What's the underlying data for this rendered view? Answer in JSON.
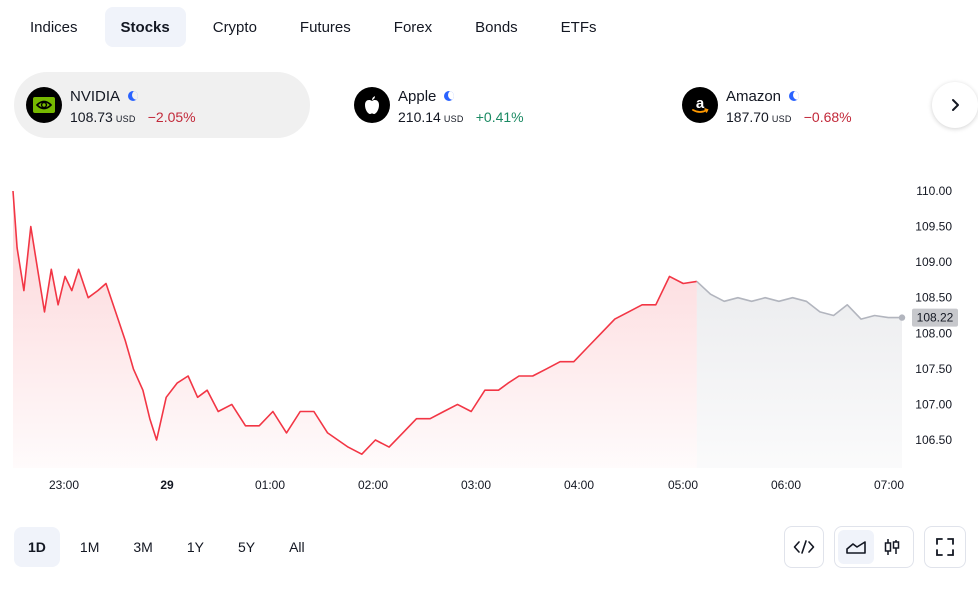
{
  "tabs": [
    {
      "label": "Indices",
      "active": false
    },
    {
      "label": "Stocks",
      "active": true
    },
    {
      "label": "Crypto",
      "active": false
    },
    {
      "label": "Futures",
      "active": false
    },
    {
      "label": "Forex",
      "active": false
    },
    {
      "label": "Bonds",
      "active": false
    },
    {
      "label": "ETFs",
      "active": false
    }
  ],
  "cards": [
    {
      "name": "NVIDIA",
      "price": "108.73",
      "currency": "USD",
      "change": "−2.05%",
      "direction": "negative",
      "icon": "nvidia-logo-icon",
      "selected": true
    },
    {
      "name": "Apple",
      "price": "210.14",
      "currency": "USD",
      "change": "+0.41%",
      "direction": "positive",
      "icon": "apple-logo-icon",
      "selected": false
    },
    {
      "name": "Amazon",
      "price": "187.70",
      "currency": "USD",
      "change": "−0.68%",
      "direction": "negative",
      "icon": "amazon-logo-icon",
      "selected": false
    }
  ],
  "next_button_icon": "chevron-right-icon",
  "chart_data": {
    "type": "line",
    "x_ticks": [
      "23:00",
      "29",
      "01:00",
      "02:00",
      "03:00",
      "04:00",
      "05:00",
      "06:00",
      "07:00"
    ],
    "y_ticks": [
      "110.00",
      "109.50",
      "109.00",
      "108.50",
      "108.00",
      "107.50",
      "107.00",
      "106.50"
    ],
    "ylim": [
      106.2,
      110.1
    ],
    "last_price_label": "108.22",
    "series": [
      {
        "color": "#f23645",
        "x": [
          22.5,
          22.53,
          22.58,
          22.63,
          22.68,
          22.73,
          22.78,
          22.83,
          22.88,
          22.93,
          22.98,
          23.05,
          23.12,
          23.18,
          23.25,
          23.32,
          23.38,
          23.45,
          23.5,
          23.55,
          23.62,
          23.7,
          23.78,
          23.85,
          23.92,
          24.0,
          24.1,
          24.2,
          24.3,
          24.4,
          24.5,
          24.6,
          24.7,
          24.8,
          24.95,
          25.05,
          25.15,
          25.25,
          25.35,
          25.45,
          25.55,
          25.65,
          25.75,
          25.85,
          25.95,
          26.05,
          26.12,
          26.2,
          26.3,
          26.4,
          26.5,
          26.6,
          26.7,
          26.8,
          26.9,
          27.0,
          27.1,
          27.2,
          27.3,
          27.4,
          27.5,
          27.6,
          27.7,
          27.8,
          27.9,
          28.0,
          28.1,
          28.2,
          28.3,
          28.4,
          28.5,
          28.6,
          28.7,
          28.8,
          28.9,
          29.0
        ],
        "y": [
          110.0,
          109.2,
          108.6,
          109.5,
          108.9,
          108.3,
          108.9,
          108.4,
          108.8,
          108.6,
          108.9,
          108.5,
          108.6,
          108.7,
          108.3,
          107.9,
          107.5,
          107.2,
          106.8,
          106.5,
          107.1,
          107.3,
          107.4,
          107.1,
          107.2,
          106.9,
          107.0,
          106.7,
          106.7,
          106.9,
          106.6,
          106.9,
          106.9,
          106.6,
          106.4,
          106.3,
          106.5,
          106.4,
          106.6,
          106.8,
          106.8,
          106.9,
          107.0,
          106.9,
          107.2,
          107.2,
          107.3,
          107.4,
          107.4,
          107.5,
          107.6,
          107.6,
          107.8,
          108.0,
          108.2,
          108.3,
          108.4,
          108.4,
          108.8,
          108.7,
          108.73,
          null,
          null,
          null,
          null,
          null,
          null,
          null,
          null,
          null,
          null,
          null,
          null,
          null,
          null,
          null
        ]
      },
      {
        "color": "#b2b5be",
        "x": [
          27.5,
          27.6,
          27.7,
          27.8,
          27.9,
          28.0,
          28.1,
          28.2,
          28.3,
          28.4,
          28.5,
          28.6,
          28.7,
          28.8,
          28.9,
          29.0
        ],
        "y": [
          108.73,
          108.55,
          108.45,
          108.5,
          108.45,
          108.5,
          108.45,
          108.5,
          108.45,
          108.3,
          108.25,
          108.4,
          108.2,
          108.25,
          108.22,
          108.22
        ]
      }
    ]
  },
  "ranges": [
    {
      "label": "1D",
      "active": true
    },
    {
      "label": "1M",
      "active": false
    },
    {
      "label": "3M",
      "active": false
    },
    {
      "label": "1Y",
      "active": false
    },
    {
      "label": "5Y",
      "active": false
    },
    {
      "label": "All",
      "active": false
    }
  ],
  "tools": {
    "embed_icon": "code-icon",
    "area_chart_icon": "area-chart-icon",
    "candles_icon": "candlestick-icon",
    "fullscreen_icon": "fullscreen-icon"
  },
  "colors": {
    "negative": "#c2293a",
    "positive": "#1b8a63",
    "line": "#f23645",
    "after_hours": "#b2b5be",
    "tab_active_bg": "#f0f3fa"
  }
}
